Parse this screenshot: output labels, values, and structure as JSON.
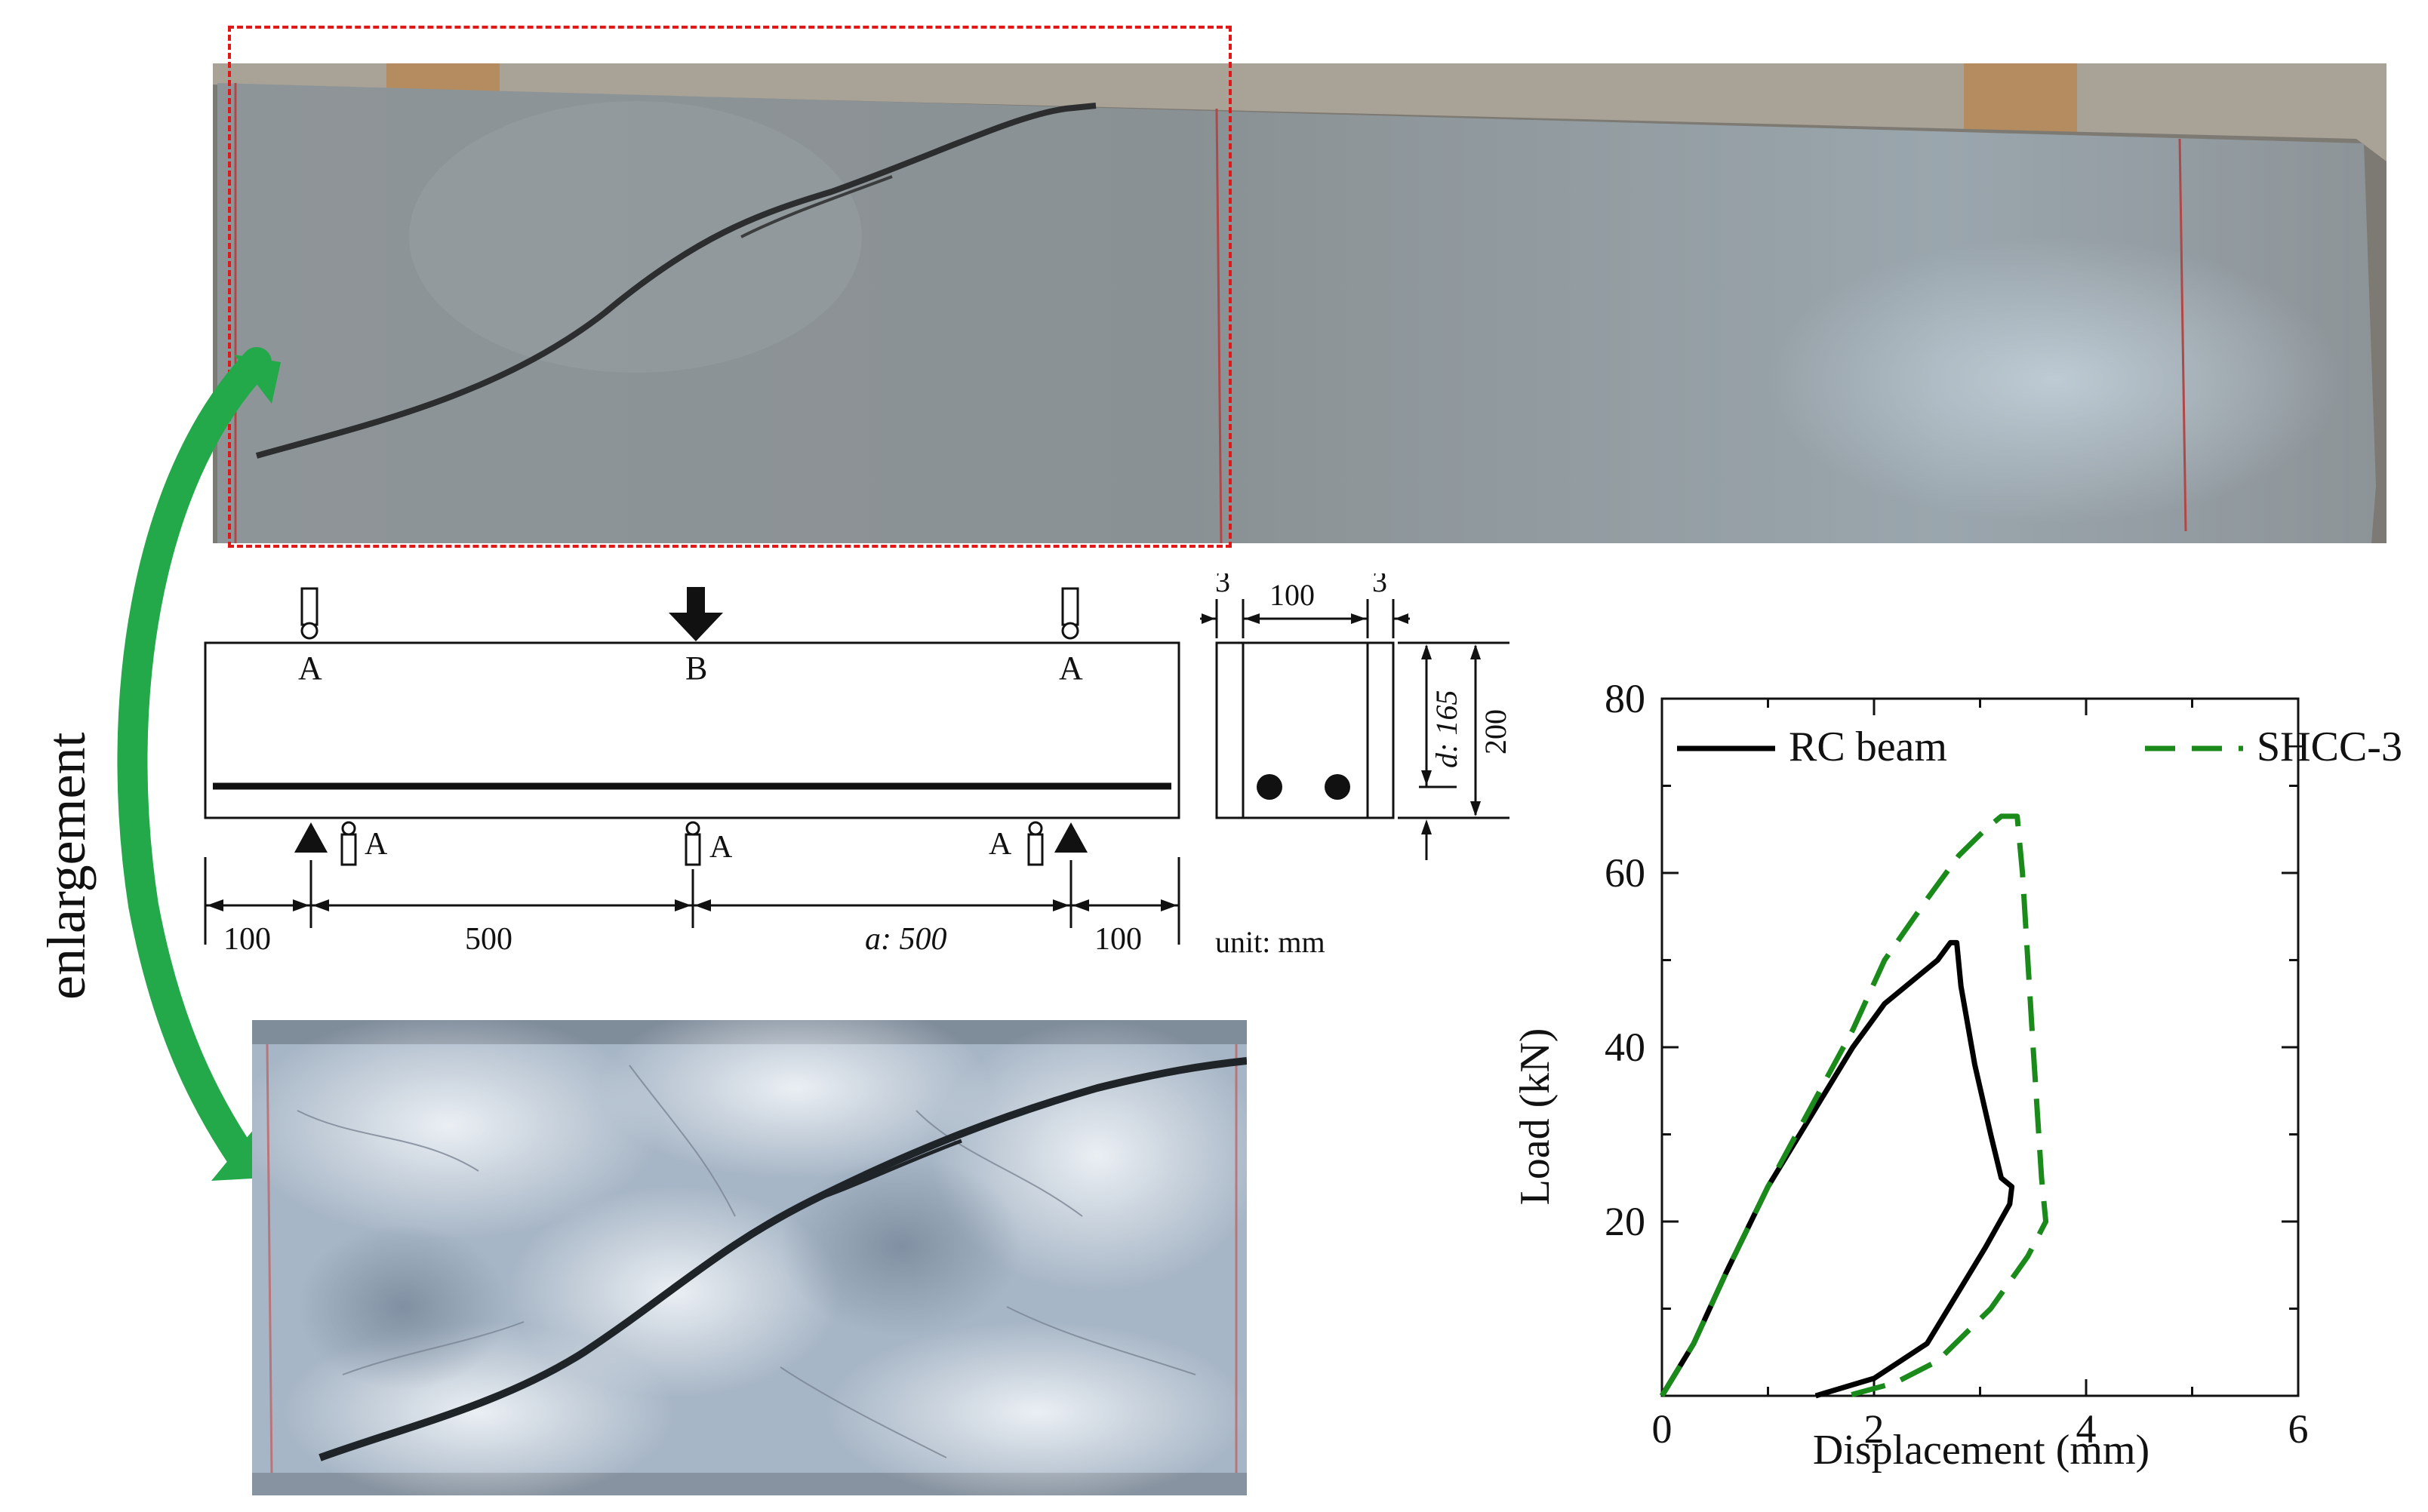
{
  "arrow_label": "enlargement",
  "schematic": {
    "load_point_label": "B",
    "gauge_label": "A",
    "dims_bottom": [
      "100",
      "500",
      "a: 500",
      "100"
    ],
    "section_dims": {
      "cover_left": "3",
      "width": "100",
      "cover_right": "3",
      "effective_depth": "d: 165",
      "height": "200"
    },
    "unit_label": "unit: mm"
  },
  "chart_data": {
    "type": "line",
    "xlabel": "Displacement (mm)",
    "ylabel": "Load (kN)",
    "xlim": [
      0,
      6
    ],
    "ylim": [
      0,
      80
    ],
    "x_ticks": [
      "0",
      "2",
      "4",
      "6"
    ],
    "y_ticks": [
      "20",
      "40",
      "60",
      "80"
    ],
    "legend_position": "top",
    "series": [
      {
        "name": "RC beam",
        "color": "#000000",
        "dash": "solid",
        "points": [
          [
            0,
            0
          ],
          [
            0.3,
            6
          ],
          [
            0.6,
            14
          ],
          [
            1.0,
            24
          ],
          [
            1.4,
            32
          ],
          [
            1.8,
            40
          ],
          [
            2.1,
            45
          ],
          [
            2.4,
            48
          ],
          [
            2.6,
            50
          ],
          [
            2.72,
            52
          ],
          [
            2.78,
            52
          ],
          [
            2.82,
            47
          ],
          [
            2.95,
            38
          ],
          [
            3.1,
            30
          ],
          [
            3.2,
            25
          ],
          [
            3.3,
            24
          ],
          [
            3.28,
            22
          ],
          [
            3.05,
            17
          ],
          [
            2.8,
            12
          ],
          [
            2.5,
            6
          ],
          [
            2.0,
            2
          ],
          [
            1.45,
            0
          ]
        ]
      },
      {
        "name": "SHCC-3",
        "color": "#1a8a1a",
        "dash": "dashed",
        "points": [
          [
            0,
            0
          ],
          [
            0.3,
            6
          ],
          [
            0.6,
            14
          ],
          [
            1.0,
            24
          ],
          [
            1.4,
            33
          ],
          [
            1.8,
            42
          ],
          [
            2.1,
            50
          ],
          [
            2.5,
            57
          ],
          [
            2.8,
            62
          ],
          [
            3.05,
            65
          ],
          [
            3.2,
            66.5
          ],
          [
            3.35,
            66.5
          ],
          [
            3.4,
            60
          ],
          [
            3.5,
            40
          ],
          [
            3.58,
            25
          ],
          [
            3.62,
            20
          ],
          [
            3.45,
            16
          ],
          [
            3.1,
            10
          ],
          [
            2.6,
            4
          ],
          [
            2.2,
            1.5
          ],
          [
            1.75,
            0
          ]
        ]
      }
    ]
  }
}
